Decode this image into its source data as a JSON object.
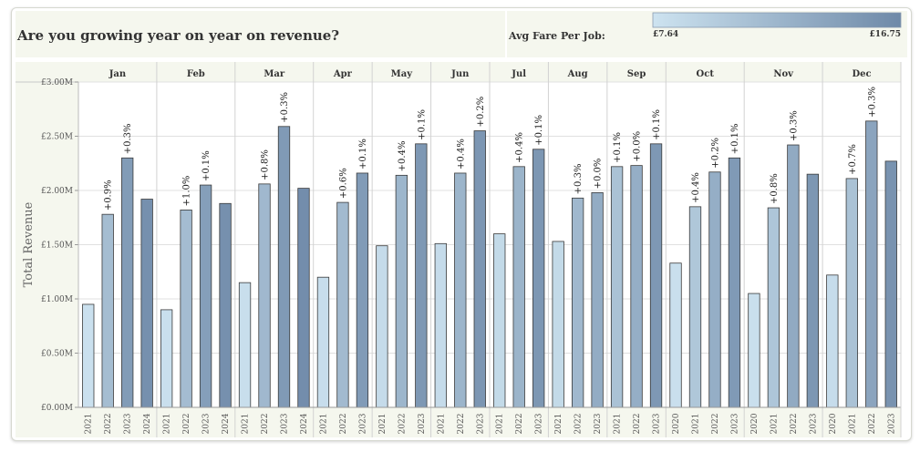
{
  "title": "Are you growing year on year on revenue?",
  "legend": {
    "label": "Avg Fare Per Job:",
    "min_label": "£7.64",
    "max_label": "£16.75",
    "min": 7.64,
    "max": 16.75
  },
  "colors": {
    "low": "#cde3f0",
    "high": "#6e89a8",
    "panel_bg": "#f5f7ee",
    "grid": "#e0e0e0",
    "text": "#333333"
  },
  "chart_data": {
    "type": "bar",
    "ylabel": "Total Revenue",
    "ylim": [
      0,
      3.0
    ],
    "y_ticks": [
      "£0.00M",
      "£0.50M",
      "£1.00M",
      "£1.50M",
      "£2.00M",
      "£2.50M",
      "£3.00M"
    ],
    "y_tick_values": [
      0,
      0.5,
      1.0,
      1.5,
      2.0,
      2.5,
      3.0
    ],
    "months": [
      {
        "name": "Jan",
        "bars": [
          {
            "year": "2021",
            "value": 0.95,
            "fare": 7.9
          },
          {
            "year": "2022",
            "value": 1.78,
            "fare": 11.5,
            "label": "+0.9%"
          },
          {
            "year": "2023",
            "value": 2.3,
            "fare": 14.8,
            "label": "+0.3%"
          },
          {
            "year": "2024",
            "value": 1.92,
            "fare": 16.0
          }
        ]
      },
      {
        "name": "Feb",
        "bars": [
          {
            "year": "2021",
            "value": 0.9,
            "fare": 8.0
          },
          {
            "year": "2022",
            "value": 1.82,
            "fare": 11.6,
            "label": "+1.0%"
          },
          {
            "year": "2023",
            "value": 2.05,
            "fare": 14.5,
            "label": "+0.1%"
          },
          {
            "year": "2024",
            "value": 1.88,
            "fare": 16.0
          }
        ]
      },
      {
        "name": "Mar",
        "bars": [
          {
            "year": "2021",
            "value": 1.15,
            "fare": 8.1
          },
          {
            "year": "2022",
            "value": 2.06,
            "fare": 12.0,
            "label": "+0.8%"
          },
          {
            "year": "2023",
            "value": 2.59,
            "fare": 15.0,
            "label": "+0.3%"
          },
          {
            "year": "2024",
            "value": 2.02,
            "fare": 16.3
          }
        ]
      },
      {
        "name": "Apr",
        "bars": [
          {
            "year": "2021",
            "value": 1.2,
            "fare": 8.2
          },
          {
            "year": "2022",
            "value": 1.89,
            "fare": 11.8,
            "label": "+0.6%"
          },
          {
            "year": "2023",
            "value": 2.16,
            "fare": 14.9,
            "label": "+0.1%"
          }
        ]
      },
      {
        "name": "May",
        "bars": [
          {
            "year": "2021",
            "value": 1.49,
            "fare": 8.4
          },
          {
            "year": "2022",
            "value": 2.14,
            "fare": 12.2,
            "label": "+0.4%"
          },
          {
            "year": "2023",
            "value": 2.43,
            "fare": 15.2,
            "label": "+0.1%"
          }
        ]
      },
      {
        "name": "Jun",
        "bars": [
          {
            "year": "2021",
            "value": 1.51,
            "fare": 8.4
          },
          {
            "year": "2022",
            "value": 2.16,
            "fare": 12.3,
            "label": "+0.4%"
          },
          {
            "year": "2023",
            "value": 2.55,
            "fare": 15.4,
            "label": "+0.2%"
          }
        ]
      },
      {
        "name": "Jul",
        "bars": [
          {
            "year": "2021",
            "value": 1.6,
            "fare": 8.6
          },
          {
            "year": "2022",
            "value": 2.22,
            "fare": 12.4,
            "label": "+0.4%"
          },
          {
            "year": "2023",
            "value": 2.38,
            "fare": 15.3,
            "label": "+0.1%"
          }
        ]
      },
      {
        "name": "Aug",
        "bars": [
          {
            "year": "2021",
            "value": 1.53,
            "fare": 8.6
          },
          {
            "year": "2022",
            "value": 1.93,
            "fare": 12.0,
            "label": "+0.3%"
          },
          {
            "year": "2023",
            "value": 1.98,
            "fare": 13.2,
            "label": "+0.0%"
          }
        ]
      },
      {
        "name": "Sep",
        "bars": [
          {
            "year": "2021",
            "value": 2.22,
            "fare": 11.0,
            "label": "+0.1%"
          },
          {
            "year": "2022",
            "value": 2.23,
            "fare": 13.0,
            "label": "+0.0%"
          },
          {
            "year": "2023",
            "value": 2.43,
            "fare": 15.2,
            "label": "+0.1%"
          }
        ]
      },
      {
        "name": "Oct",
        "bars": [
          {
            "year": "2020",
            "value": 1.33,
            "fare": 8.0
          },
          {
            "year": "2021",
            "value": 1.85,
            "fare": 10.5,
            "label": "+0.4%"
          },
          {
            "year": "2022",
            "value": 2.17,
            "fare": 13.0,
            "label": "+0.2%"
          },
          {
            "year": "2023",
            "value": 2.3,
            "fare": 15.0,
            "label": "+0.1%"
          }
        ]
      },
      {
        "name": "Nov",
        "bars": [
          {
            "year": "2020",
            "value": 1.05,
            "fare": 8.0
          },
          {
            "year": "2021",
            "value": 1.84,
            "fare": 10.6,
            "label": "+0.8%"
          },
          {
            "year": "2022",
            "value": 2.42,
            "fare": 13.4,
            "label": "+0.3%"
          },
          {
            "year": "2023",
            "value": 2.15,
            "fare": 15.3
          }
        ]
      },
      {
        "name": "Dec",
        "bars": [
          {
            "year": "2020",
            "value": 1.22,
            "fare": 8.3
          },
          {
            "year": "2021",
            "value": 2.11,
            "fare": 11.0,
            "label": "+0.7%"
          },
          {
            "year": "2022",
            "value": 2.64,
            "fare": 14.0,
            "label": "+0.3%"
          },
          {
            "year": "2023",
            "value": 2.27,
            "fare": 15.7
          }
        ]
      }
    ]
  }
}
